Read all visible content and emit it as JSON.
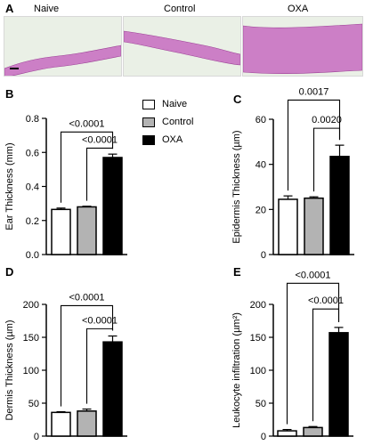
{
  "panel_letters": {
    "a": "A",
    "b": "B",
    "c": "C",
    "d": "D",
    "e": "E"
  },
  "histology": {
    "labels": [
      "Naive",
      "Control",
      "OXA"
    ],
    "tissue_color": "#cc7fc6",
    "background_color": "#eaf0e6"
  },
  "legend": {
    "items": [
      {
        "label": "Naive",
        "color": "#ffffff"
      },
      {
        "label": "Control",
        "color": "#b3b3b3"
      },
      {
        "label": "OXA",
        "color": "#000000"
      }
    ]
  },
  "chart_data": [
    {
      "id": "B",
      "type": "bar",
      "categories": [
        "Naive",
        "Control",
        "OXA"
      ],
      "values": [
        0.265,
        0.28,
        0.57
      ],
      "errors": [
        0.008,
        0.004,
        0.02
      ],
      "colors": [
        "#ffffff",
        "#b3b3b3",
        "#000000"
      ],
      "ylabel": "Ear Thickness (mm)",
      "ylim": [
        0,
        0.8
      ],
      "yticks": [
        0.0,
        0.2,
        0.4,
        0.6,
        0.8
      ],
      "ytick_labels": [
        "0.0",
        "0.2",
        "0.4",
        "0.6",
        "0.8"
      ],
      "brackets": [
        {
          "from": 0,
          "to": 2,
          "y": 0.72,
          "label": "<0.0001"
        },
        {
          "from": 1,
          "to": 2,
          "y": 0.625,
          "label": "<0.0001"
        }
      ]
    },
    {
      "id": "C",
      "type": "bar",
      "categories": [
        "Naive",
        "Control",
        "OXA"
      ],
      "values": [
        24.5,
        25,
        43.5
      ],
      "errors": [
        1.5,
        0.6,
        5
      ],
      "colors": [
        "#ffffff",
        "#b3b3b3",
        "#000000"
      ],
      "ylabel": "Epidermis Thickness (µm)",
      "ylim": [
        0,
        60
      ],
      "yticks": [
        0,
        20,
        40,
        60
      ],
      "ytick_labels": [
        "0",
        "20",
        "40",
        "60"
      ],
      "brackets": [
        {
          "from": 0,
          "to": 2,
          "y": 68.5,
          "label": "0.0017"
        },
        {
          "from": 1,
          "to": 2,
          "y": 56,
          "label": "0.0020"
        }
      ]
    },
    {
      "id": "D",
      "type": "bar",
      "categories": [
        "Naive",
        "Control",
        "OXA"
      ],
      "values": [
        36,
        38,
        143
      ],
      "errors": [
        1,
        3,
        9
      ],
      "colors": [
        "#ffffff",
        "#b3b3b3",
        "#000000"
      ],
      "ylabel": "Dermis Thickness (µm)",
      "ylim": [
        0,
        200
      ],
      "yticks": [
        0,
        50,
        100,
        150,
        200
      ],
      "ytick_labels": [
        "0",
        "50",
        "100",
        "150",
        "200"
      ],
      "brackets": [
        {
          "from": 0,
          "to": 2,
          "y": 198,
          "label": "<0.0001"
        },
        {
          "from": 1,
          "to": 2,
          "y": 163,
          "label": "<0.0001"
        }
      ]
    },
    {
      "id": "E",
      "type": "bar",
      "categories": [
        "Naive",
        "Control",
        "OXA"
      ],
      "values": [
        8,
        13,
        157
      ],
      "errors": [
        2,
        1.5,
        8
      ],
      "colors": [
        "#ffffff",
        "#b3b3b3",
        "#000000"
      ],
      "ylabel": "Leukocyte infiltration (µm²)",
      "ylim": [
        0,
        200
      ],
      "yticks": [
        0,
        50,
        100,
        150,
        200
      ],
      "ytick_labels": [
        "0",
        "50",
        "100",
        "150",
        "200"
      ],
      "brackets": [
        {
          "from": 0,
          "to": 2,
          "y": 232,
          "label": "<0.0001"
        },
        {
          "from": 1,
          "to": 2,
          "y": 193,
          "label": "<0.0001"
        }
      ]
    }
  ]
}
